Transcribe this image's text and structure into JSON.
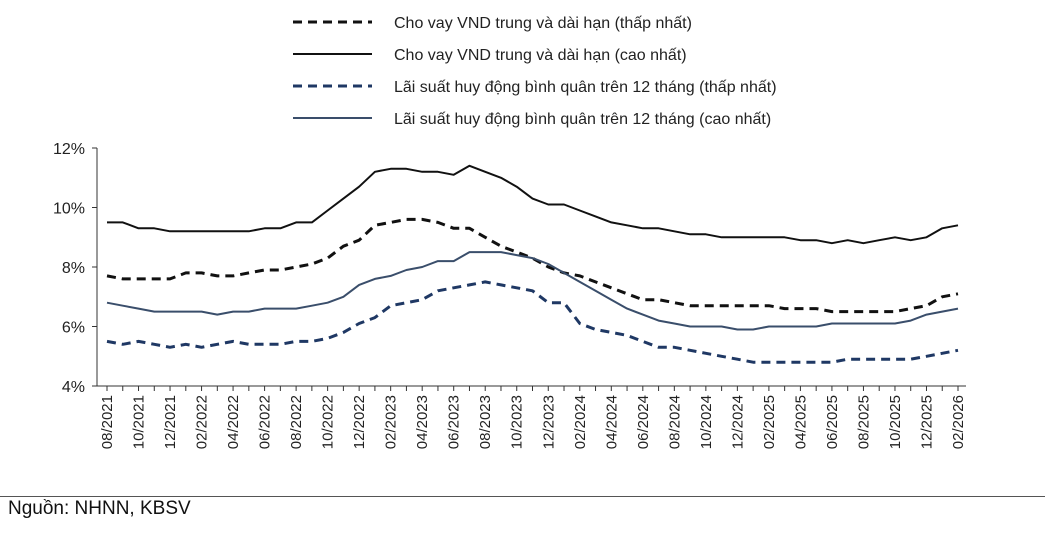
{
  "source_note": "Nguồn: NHNN, KBSV",
  "chart_data": {
    "type": "line",
    "title": "",
    "xlabel": "",
    "ylabel": "",
    "ylim": [
      4,
      12
    ],
    "yticks": [
      4,
      6,
      8,
      10,
      12
    ],
    "ytick_labels": [
      "4%",
      "6%",
      "8%",
      "10%",
      "12%"
    ],
    "grid": false,
    "legend_position": "top-center",
    "x": [
      "08/2021",
      "09/2021",
      "10/2021",
      "11/2021",
      "12/2021",
      "01/2022",
      "02/2022",
      "03/2022",
      "04/2022",
      "05/2022",
      "06/2022",
      "07/2022",
      "08/2022",
      "09/2022",
      "10/2022",
      "11/2022",
      "12/2022",
      "01/2023",
      "02/2023",
      "03/2023",
      "04/2023",
      "05/2023",
      "06/2023",
      "07/2023",
      "08/2023",
      "09/2023",
      "10/2023",
      "11/2023",
      "12/2023",
      "01/2024",
      "02/2024",
      "03/2024",
      "04/2024",
      "05/2024",
      "06/2024",
      "07/2024",
      "08/2024",
      "09/2024",
      "10/2024",
      "11/2024",
      "12/2024",
      "01/2025",
      "02/2025",
      "03/2025",
      "04/2025",
      "05/2025",
      "06/2025",
      "07/2025",
      "08/2025",
      "09/2025",
      "10/2025",
      "11/2025",
      "12/2025",
      "01/2026",
      "02/2026"
    ],
    "xtick_labels": [
      "08/2021",
      "10/2021",
      "12/2021",
      "02/2022",
      "04/2022",
      "06/2022",
      "08/2022",
      "10/2022",
      "12/2022",
      "02/2023",
      "04/2023",
      "06/2023",
      "08/2023",
      "10/2023",
      "12/2023",
      "02/2024",
      "04/2024",
      "06/2024",
      "08/2024",
      "10/2024",
      "12/2024",
      "02/2025",
      "04/2025",
      "06/2025",
      "08/2025",
      "10/2025",
      "12/2025",
      "02/2026"
    ],
    "series": [
      {
        "name": "Cho vay VND trung và dài hạn (thấp nhất)",
        "color": "#111111",
        "style": "dashed",
        "values": [
          7.7,
          7.6,
          7.6,
          7.6,
          7.6,
          7.8,
          7.8,
          7.7,
          7.7,
          7.8,
          7.9,
          7.9,
          8.0,
          8.1,
          8.3,
          8.7,
          8.9,
          9.4,
          9.5,
          9.6,
          9.6,
          9.5,
          9.3,
          9.3,
          9.0,
          8.7,
          8.5,
          8.3,
          8.0,
          7.8,
          7.7,
          7.5,
          7.3,
          7.1,
          6.9,
          6.9,
          6.8,
          6.7,
          6.7,
          6.7,
          6.7,
          6.7,
          6.7,
          6.6,
          6.6,
          6.6,
          6.5,
          6.5,
          6.5,
          6.5,
          6.5,
          6.6,
          6.7,
          7.0,
          7.1
        ]
      },
      {
        "name": "Cho vay VND trung và dài hạn (cao nhất)",
        "color": "#111111",
        "style": "solid",
        "values": [
          9.5,
          9.5,
          9.3,
          9.3,
          9.2,
          9.2,
          9.2,
          9.2,
          9.2,
          9.2,
          9.3,
          9.3,
          9.5,
          9.5,
          9.9,
          10.3,
          10.7,
          11.2,
          11.3,
          11.3,
          11.2,
          11.2,
          11.1,
          11.4,
          11.2,
          11.0,
          10.7,
          10.3,
          10.1,
          10.1,
          9.9,
          9.7,
          9.5,
          9.4,
          9.3,
          9.3,
          9.2,
          9.1,
          9.1,
          9.0,
          9.0,
          9.0,
          9.0,
          9.0,
          8.9,
          8.9,
          8.8,
          8.9,
          8.8,
          8.9,
          9.0,
          8.9,
          9.0,
          9.3,
          9.4
        ]
      },
      {
        "name": "Lãi suất huy động bình quân trên 12 tháng (thấp nhất)",
        "color": "#1f3864",
        "style": "dashed",
        "values": [
          5.5,
          5.4,
          5.5,
          5.4,
          5.3,
          5.4,
          5.3,
          5.4,
          5.5,
          5.4,
          5.4,
          5.4,
          5.5,
          5.5,
          5.6,
          5.8,
          6.1,
          6.3,
          6.7,
          6.8,
          6.9,
          7.2,
          7.3,
          7.4,
          7.5,
          7.4,
          7.3,
          7.2,
          6.8,
          6.8,
          6.1,
          5.9,
          5.8,
          5.7,
          5.5,
          5.3,
          5.3,
          5.2,
          5.1,
          5.0,
          4.9,
          4.8,
          4.8,
          4.8,
          4.8,
          4.8,
          4.8,
          4.9,
          4.9,
          4.9,
          4.9,
          4.9,
          5.0,
          5.1,
          5.2
        ]
      },
      {
        "name": "Lãi suất huy động bình quân trên 12 tháng (cao nhất)",
        "color": "#3a4e6b",
        "style": "solid",
        "values": [
          6.8,
          6.7,
          6.6,
          6.5,
          6.5,
          6.5,
          6.5,
          6.4,
          6.5,
          6.5,
          6.6,
          6.6,
          6.6,
          6.7,
          6.8,
          7.0,
          7.4,
          7.6,
          7.7,
          7.9,
          8.0,
          8.2,
          8.2,
          8.5,
          8.5,
          8.5,
          8.4,
          8.3,
          8.1,
          7.8,
          7.5,
          7.2,
          6.9,
          6.6,
          6.4,
          6.2,
          6.1,
          6.0,
          6.0,
          6.0,
          5.9,
          5.9,
          6.0,
          6.0,
          6.0,
          6.0,
          6.1,
          6.1,
          6.1,
          6.1,
          6.1,
          6.2,
          6.4,
          6.5,
          6.6
        ]
      }
    ]
  }
}
